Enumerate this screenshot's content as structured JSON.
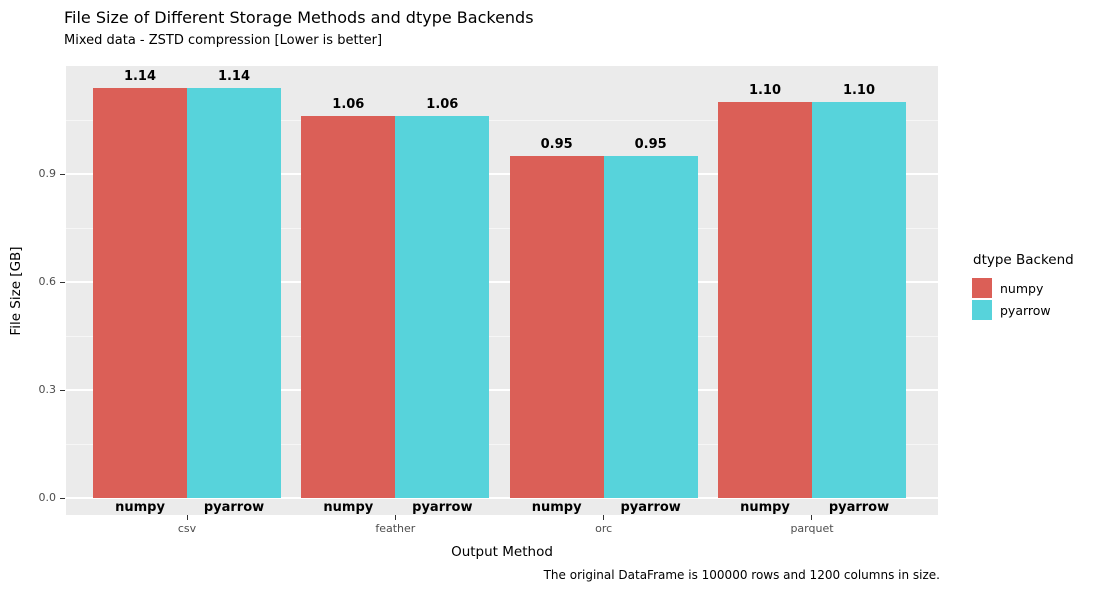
{
  "title": "File Size of Different Storage Methods and dtype Backends",
  "subtitle": "Mixed data - ZSTD compression [Lower is better]",
  "caption": "The original DataFrame is 100000 rows and 1200 columns in size.",
  "chart_data": {
    "type": "bar",
    "title": "File Size of Different Storage Methods and dtype Backends",
    "subtitle": "Mixed data - ZSTD compression [Lower is better]",
    "categories": [
      "csv",
      "feather",
      "orc",
      "parquet"
    ],
    "series": [
      {
        "name": "numpy",
        "color": "#DB5F57",
        "values": [
          1.14,
          1.06,
          0.95,
          1.1
        ]
      },
      {
        "name": "pyarrow",
        "color": "#57D3DB",
        "values": [
          1.14,
          1.06,
          0.95,
          1.1
        ]
      }
    ],
    "xlabel": "Output Method",
    "ylabel": "File Size [GB]",
    "yticks": [
      0.0,
      0.3,
      0.6,
      0.9
    ],
    "yticks_minor": [
      0.15,
      0.45,
      0.75,
      1.05
    ],
    "ylim": [
      -0.05,
      1.2
    ],
    "grid": true,
    "bar_value_format": "2dp",
    "legend_title": "dtype Backend",
    "legend_position": "right",
    "panel_bg": "#EBEBEB",
    "grid_color": "#FFFFFF",
    "caption": "The original DataFrame is 100000 rows and 1200 columns in size."
  }
}
